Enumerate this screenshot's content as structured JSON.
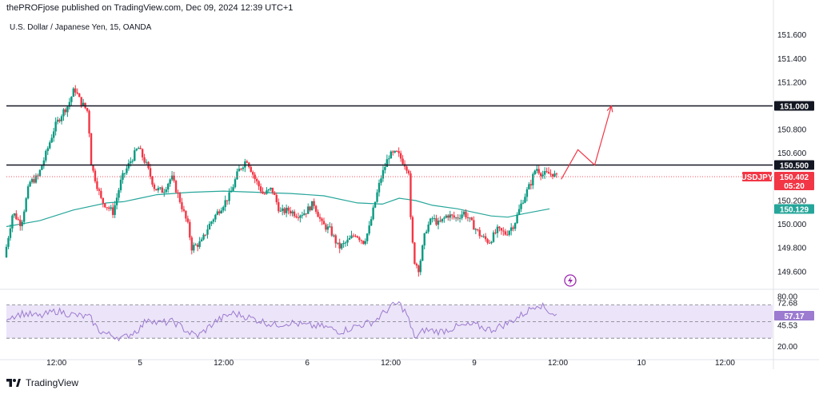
{
  "header": {
    "publisher": "thePROFjose published on TradingView.com, Dec 09, 2024 12:39 UTC+1",
    "symbol_line": "U.S. Dollar / Japanese Yen, 15, OANDA"
  },
  "footer": {
    "brand": "TradingView"
  },
  "chart_data": {
    "type": "candlestick",
    "symbol": "USDJPY",
    "price_axis": {
      "ticks": [
        151.6,
        151.4,
        151.2,
        150.8,
        150.6,
        150.2,
        150.0,
        149.8,
        149.6
      ],
      "tick_labels": [
        "151.600",
        "151.400",
        "151.200",
        "150.800",
        "150.600",
        "150.200",
        "150.000",
        "149.800",
        "149.600"
      ],
      "range": [
        149.45,
        151.76
      ]
    },
    "time_axis": {
      "labels": [
        {
          "text": "12:00",
          "t": 0.5
        },
        {
          "text": "5",
          "t": 1.0
        },
        {
          "text": "12:00",
          "t": 1.5
        },
        {
          "text": "6",
          "t": 2.0
        },
        {
          "text": "12:00",
          "t": 2.5
        },
        {
          "text": "9",
          "t": 3.0
        },
        {
          "text": "12:00",
          "t": 3.5
        },
        {
          "text": "10",
          "t": 4.0
        },
        {
          "text": "12:00",
          "t": 4.5
        }
      ],
      "range": [
        0.2,
        4.78
      ]
    },
    "horizontal_levels": [
      {
        "price": 151.0,
        "label": "151.000"
      },
      {
        "price": 150.5,
        "label": "150.500"
      }
    ],
    "last_price": {
      "symbol": "USDJPY",
      "value": "150.402",
      "countdown": "05:20",
      "price": 150.402
    },
    "moving_average": {
      "value_label": "150.129",
      "points": [
        [
          0.2,
          149.98
        ],
        [
          0.4,
          150.03
        ],
        [
          0.6,
          150.12
        ],
        [
          0.8,
          150.18
        ],
        [
          0.9,
          150.19
        ],
        [
          1.0,
          150.22
        ],
        [
          1.1,
          150.25
        ],
        [
          1.3,
          150.27
        ],
        [
          1.5,
          150.28
        ],
        [
          1.7,
          150.27
        ],
        [
          1.9,
          150.26
        ],
        [
          2.1,
          150.24
        ],
        [
          2.3,
          150.18
        ],
        [
          2.45,
          150.17
        ],
        [
          2.55,
          150.22
        ],
        [
          2.65,
          150.2
        ],
        [
          2.75,
          150.16
        ],
        [
          2.9,
          150.13
        ],
        [
          3.0,
          150.1
        ],
        [
          3.1,
          150.07
        ],
        [
          3.2,
          150.06
        ],
        [
          3.3,
          150.09
        ],
        [
          3.45,
          150.13
        ]
      ]
    },
    "candles_path": [
      [
        0.2,
        149.72
      ],
      [
        0.25,
        150.1
      ],
      [
        0.3,
        150.0
      ],
      [
        0.35,
        150.35
      ],
      [
        0.4,
        150.4
      ],
      [
        0.45,
        150.6
      ],
      [
        0.5,
        150.82
      ],
      [
        0.55,
        150.95
      ],
      [
        0.58,
        151.0
      ],
      [
        0.62,
        151.15
      ],
      [
        0.65,
        151.05
      ],
      [
        0.7,
        150.95
      ],
      [
        0.72,
        150.5
      ],
      [
        0.78,
        150.2
      ],
      [
        0.85,
        150.1
      ],
      [
        0.9,
        150.38
      ],
      [
        0.95,
        150.52
      ],
      [
        1.0,
        150.65
      ],
      [
        1.05,
        150.5
      ],
      [
        1.1,
        150.3
      ],
      [
        1.15,
        150.28
      ],
      [
        1.2,
        150.4
      ],
      [
        1.25,
        150.2
      ],
      [
        1.3,
        149.98
      ],
      [
        1.32,
        149.8
      ],
      [
        1.38,
        149.85
      ],
      [
        1.42,
        149.98
      ],
      [
        1.45,
        150.05
      ],
      [
        1.5,
        150.15
      ],
      [
        1.55,
        150.25
      ],
      [
        1.6,
        150.45
      ],
      [
        1.65,
        150.55
      ],
      [
        1.7,
        150.38
      ],
      [
        1.75,
        150.25
      ],
      [
        1.8,
        150.3
      ],
      [
        1.85,
        150.1
      ],
      [
        1.9,
        150.12
      ],
      [
        1.95,
        150.08
      ],
      [
        2.0,
        150.1
      ],
      [
        2.05,
        150.18
      ],
      [
        2.1,
        150.0
      ],
      [
        2.15,
        149.95
      ],
      [
        2.2,
        149.8
      ],
      [
        2.25,
        149.85
      ],
      [
        2.3,
        149.92
      ],
      [
        2.35,
        149.85
      ],
      [
        2.38,
        149.95
      ],
      [
        2.42,
        150.2
      ],
      [
        2.45,
        150.38
      ],
      [
        2.5,
        150.58
      ],
      [
        2.55,
        150.6
      ],
      [
        2.6,
        150.5
      ],
      [
        2.62,
        150.45
      ],
      [
        2.63,
        150.05
      ],
      [
        2.65,
        149.7
      ],
      [
        2.68,
        149.62
      ],
      [
        2.72,
        149.95
      ],
      [
        2.76,
        150.05
      ],
      [
        2.8,
        150.0
      ],
      [
        2.85,
        150.08
      ],
      [
        2.9,
        150.05
      ],
      [
        2.95,
        150.1
      ],
      [
        3.0,
        150.0
      ],
      [
        3.05,
        149.9
      ],
      [
        3.1,
        149.85
      ],
      [
        3.15,
        149.95
      ],
      [
        3.2,
        149.92
      ],
      [
        3.25,
        150.0
      ],
      [
        3.3,
        150.2
      ],
      [
        3.35,
        150.35
      ],
      [
        3.38,
        150.48
      ],
      [
        3.42,
        150.42
      ],
      [
        3.48,
        150.43
      ],
      [
        3.5,
        150.4
      ]
    ],
    "projection": [
      [
        3.52,
        150.38
      ],
      [
        3.62,
        150.63
      ],
      [
        3.72,
        150.5
      ],
      [
        3.82,
        151.0
      ]
    ],
    "rsi": {
      "tick_labels": [
        "80.00",
        "72.68",
        "45.53",
        "20.00"
      ],
      "ticks": [
        80,
        72.68,
        45.53,
        20
      ],
      "current": "57.17",
      "band": [
        70,
        30
      ],
      "mid": 50,
      "points": [
        [
          0.2,
          55
        ],
        [
          0.3,
          60
        ],
        [
          0.4,
          56
        ],
        [
          0.5,
          63
        ],
        [
          0.6,
          58
        ],
        [
          0.7,
          55
        ],
        [
          0.75,
          40
        ],
        [
          0.8,
          35
        ],
        [
          0.9,
          30
        ],
        [
          1.0,
          42
        ],
        [
          1.05,
          55
        ],
        [
          1.1,
          48
        ],
        [
          1.2,
          50
        ],
        [
          1.3,
          36
        ],
        [
          1.35,
          33
        ],
        [
          1.45,
          50
        ],
        [
          1.55,
          60
        ],
        [
          1.6,
          58
        ],
        [
          1.7,
          52
        ],
        [
          1.8,
          46
        ],
        [
          1.9,
          49
        ],
        [
          2.0,
          45
        ],
        [
          2.1,
          44
        ],
        [
          2.2,
          38
        ],
        [
          2.3,
          45
        ],
        [
          2.4,
          50
        ],
        [
          2.5,
          68
        ],
        [
          2.55,
          72
        ],
        [
          2.6,
          58
        ],
        [
          2.62,
          42
        ],
        [
          2.65,
          30
        ],
        [
          2.7,
          40
        ],
        [
          2.8,
          38
        ],
        [
          2.9,
          44
        ],
        [
          3.0,
          46
        ],
        [
          3.1,
          40
        ],
        [
          3.2,
          48
        ],
        [
          3.3,
          60
        ],
        [
          3.38,
          72
        ],
        [
          3.45,
          62
        ],
        [
          3.5,
          57
        ]
      ]
    },
    "colors": {
      "up": "#089981",
      "down": "#f23645",
      "ma": "#26a69a",
      "rsi": "#9c7bd0",
      "rsi_band": "#ece4f8",
      "projection": "#f23645",
      "level": "#131722"
    }
  }
}
